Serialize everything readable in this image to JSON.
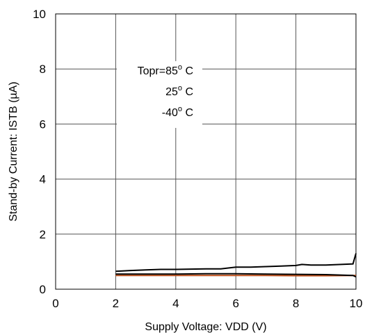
{
  "chart_data": {
    "type": "line",
    "title": "",
    "xlabel": "Supply Voltage: VDD (V)",
    "ylabel": "Stand-by Current: ISTB (µA)",
    "xlim": [
      0,
      10
    ],
    "ylim": [
      0,
      10
    ],
    "xticks": [
      "0",
      "2",
      "4",
      "6",
      "8",
      "10"
    ],
    "yticks": [
      "0",
      "2",
      "4",
      "6",
      "8",
      "10"
    ],
    "grid": true,
    "legend": "none",
    "annotations": [
      {
        "prefix": "Topr=",
        "value": "85",
        "degree": "o",
        "unit": " C"
      },
      {
        "prefix": "",
        "value": "25",
        "degree": "o",
        "unit": " C"
      },
      {
        "prefix": "",
        "value": "-40",
        "degree": "o",
        "unit": " C"
      }
    ],
    "series": [
      {
        "color": "#000000",
        "x": [
          2.0,
          2.5,
          3.0,
          3.5,
          4.0,
          4.5,
          5.0,
          5.5,
          6.0,
          6.5,
          7.0,
          7.5,
          8.0,
          8.2,
          8.5,
          9.0,
          9.5,
          9.9,
          10.0
        ],
        "y": [
          0.65,
          0.68,
          0.7,
          0.72,
          0.72,
          0.73,
          0.74,
          0.74,
          0.8,
          0.8,
          0.82,
          0.84,
          0.86,
          0.9,
          0.88,
          0.88,
          0.9,
          0.92,
          1.3
        ]
      },
      {
        "color": "#c0501a",
        "x": [
          2.0,
          3.0,
          4.0,
          5.0,
          6.0,
          7.0,
          8.0,
          9.0,
          10.0
        ],
        "y": [
          0.5,
          0.5,
          0.5,
          0.5,
          0.5,
          0.5,
          0.49,
          0.49,
          0.5
        ]
      },
      {
        "color": "#000000",
        "x": [
          2.0,
          3.0,
          4.0,
          5.0,
          6.0,
          7.0,
          8.0,
          9.0,
          9.9,
          10.0
        ],
        "y": [
          0.55,
          0.55,
          0.55,
          0.56,
          0.56,
          0.55,
          0.54,
          0.53,
          0.5,
          0.45
        ]
      }
    ]
  }
}
